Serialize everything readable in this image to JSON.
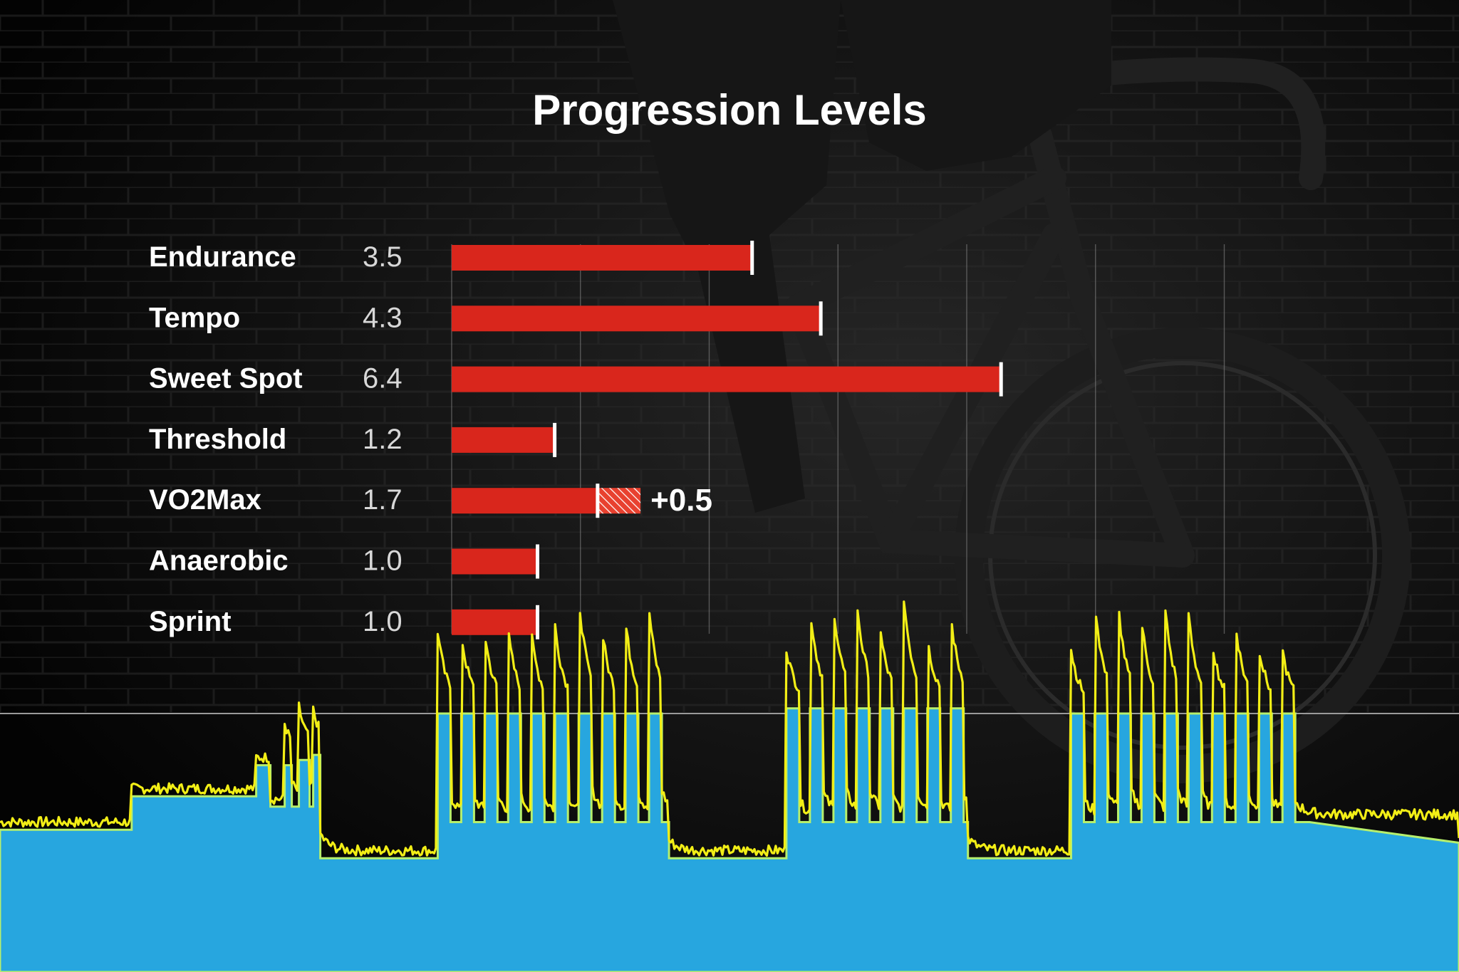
{
  "chart_data": {
    "type": "bar",
    "title": "Progression Levels",
    "categories": [
      "Endurance",
      "Tempo",
      "Sweet Spot",
      "Threshold",
      "VO2Max",
      "Anaerobic",
      "Sprint"
    ],
    "values": [
      3.5,
      4.3,
      6.4,
      1.2,
      1.7,
      1.0,
      1.0
    ],
    "value_labels": [
      "3.5",
      "4.3",
      "6.4",
      "1.2",
      "1.7",
      "1.0",
      "1.0"
    ],
    "increase": {
      "category": "VO2Max",
      "value": 0.5,
      "label": "+0.5"
    },
    "xlim": [
      0,
      10
    ],
    "grid": true,
    "colors": {
      "bar": "#d9261c",
      "marker": "#ffffff",
      "text": "#ffffff",
      "value_text": "#d8d8d8",
      "grid": "#8a8a8a",
      "workout_area": "#27a6df",
      "workout_outline": "#b6ef6d",
      "power_line": "#f2ee16",
      "threshold_line": "#9a9a9a"
    }
  },
  "workout_profile": {
    "threshold": 100,
    "target_steps": [
      [
        0,
        55
      ],
      [
        18.5,
        55
      ],
      [
        18.5,
        68
      ],
      [
        36,
        68
      ],
      [
        36,
        80
      ],
      [
        38,
        80
      ],
      [
        38,
        64
      ],
      [
        40,
        64
      ],
      [
        40,
        80
      ],
      [
        41,
        80
      ],
      [
        41,
        64
      ],
      [
        42,
        64
      ],
      [
        42,
        82
      ],
      [
        43.5,
        82
      ],
      [
        43.5,
        64
      ],
      [
        44,
        64
      ],
      [
        44,
        84
      ],
      [
        45,
        84
      ],
      [
        45,
        44
      ],
      [
        61.5,
        44
      ],
      [
        61.5,
        100
      ],
      [
        63.3,
        100
      ],
      [
        63.3,
        58
      ],
      [
        64.8,
        58
      ],
      [
        64.8,
        100
      ],
      [
        66.6,
        100
      ],
      [
        66.6,
        58
      ],
      [
        68.1,
        58
      ],
      [
        68.1,
        100
      ],
      [
        69.9,
        100
      ],
      [
        69.9,
        58
      ],
      [
        71.4,
        58
      ],
      [
        71.4,
        100
      ],
      [
        73.2,
        100
      ],
      [
        73.2,
        58
      ],
      [
        74.7,
        58
      ],
      [
        74.7,
        100
      ],
      [
        76.5,
        100
      ],
      [
        76.5,
        58
      ],
      [
        78,
        58
      ],
      [
        78,
        100
      ],
      [
        79.8,
        100
      ],
      [
        79.8,
        58
      ],
      [
        81.3,
        58
      ],
      [
        81.3,
        100
      ],
      [
        83.1,
        100
      ],
      [
        83.1,
        58
      ],
      [
        84.6,
        58
      ],
      [
        84.6,
        100
      ],
      [
        86.4,
        100
      ],
      [
        86.4,
        58
      ],
      [
        87.9,
        58
      ],
      [
        87.9,
        100
      ],
      [
        89.7,
        100
      ],
      [
        89.7,
        58
      ],
      [
        91.2,
        58
      ],
      [
        91.2,
        100
      ],
      [
        93,
        100
      ],
      [
        93,
        58
      ],
      [
        94,
        58
      ],
      [
        94,
        44
      ],
      [
        110.5,
        44
      ],
      [
        110.5,
        102
      ],
      [
        112.3,
        102
      ],
      [
        112.3,
        58
      ],
      [
        113.8,
        58
      ],
      [
        113.8,
        102
      ],
      [
        115.6,
        102
      ],
      [
        115.6,
        58
      ],
      [
        117.1,
        58
      ],
      [
        117.1,
        102
      ],
      [
        118.9,
        102
      ],
      [
        118.9,
        58
      ],
      [
        120.4,
        58
      ],
      [
        120.4,
        102
      ],
      [
        122.2,
        102
      ],
      [
        122.2,
        58
      ],
      [
        123.7,
        58
      ],
      [
        123.7,
        102
      ],
      [
        125.5,
        102
      ],
      [
        125.5,
        58
      ],
      [
        127,
        58
      ],
      [
        127,
        102
      ],
      [
        128.8,
        102
      ],
      [
        128.8,
        58
      ],
      [
        130.3,
        58
      ],
      [
        130.3,
        102
      ],
      [
        132.1,
        102
      ],
      [
        132.1,
        58
      ],
      [
        133.6,
        58
      ],
      [
        133.6,
        102
      ],
      [
        135.4,
        102
      ],
      [
        135.4,
        58
      ],
      [
        136,
        58
      ],
      [
        136,
        44
      ],
      [
        150.5,
        44
      ],
      [
        150.5,
        100
      ],
      [
        152.3,
        100
      ],
      [
        152.3,
        58
      ],
      [
        153.8,
        58
      ],
      [
        153.8,
        100
      ],
      [
        155.6,
        100
      ],
      [
        155.6,
        58
      ],
      [
        157.1,
        58
      ],
      [
        157.1,
        100
      ],
      [
        158.9,
        100
      ],
      [
        158.9,
        58
      ],
      [
        160.4,
        58
      ],
      [
        160.4,
        100
      ],
      [
        162.2,
        100
      ],
      [
        162.2,
        58
      ],
      [
        163.7,
        58
      ],
      [
        163.7,
        100
      ],
      [
        165.5,
        100
      ],
      [
        165.5,
        58
      ],
      [
        167,
        58
      ],
      [
        167,
        100
      ],
      [
        168.8,
        100
      ],
      [
        168.8,
        58
      ],
      [
        170.3,
        58
      ],
      [
        170.3,
        100
      ],
      [
        172.1,
        100
      ],
      [
        172.1,
        58
      ],
      [
        173.6,
        58
      ],
      [
        173.6,
        100
      ],
      [
        175.4,
        100
      ],
      [
        175.4,
        58
      ],
      [
        176.9,
        58
      ],
      [
        176.9,
        100
      ],
      [
        178.7,
        100
      ],
      [
        178.7,
        58
      ],
      [
        180.2,
        58
      ],
      [
        180.2,
        100
      ],
      [
        182,
        100
      ],
      [
        182,
        58
      ],
      [
        183.5,
        58
      ],
      [
        183.5,
        58
      ],
      [
        184,
        58
      ],
      [
        205,
        50
      ]
    ],
    "duration": 205
  }
}
